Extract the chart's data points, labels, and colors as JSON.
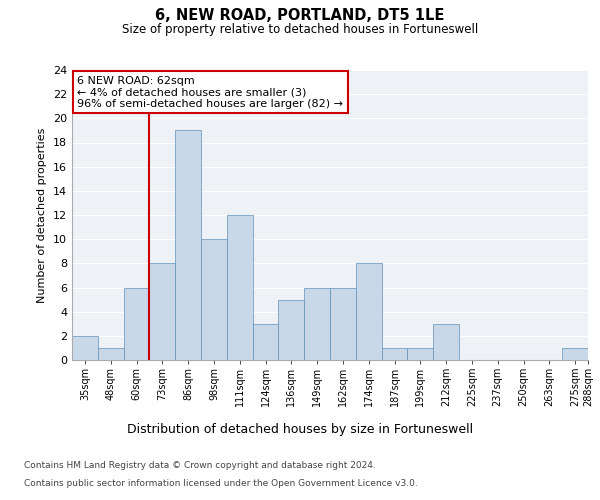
{
  "title": "6, NEW ROAD, PORTLAND, DT5 1LE",
  "subtitle": "Size of property relative to detached houses in Fortuneswell",
  "xlabel": "Distribution of detached houses by size in Fortuneswell",
  "ylabel": "Number of detached properties",
  "footnote1": "Contains HM Land Registry data © Crown copyright and database right 2024.",
  "footnote2": "Contains public sector information licensed under the Open Government Licence v3.0.",
  "annotation_line1": "6 NEW ROAD: 62sqm",
  "annotation_line2": "← 4% of detached houses are smaller (3)",
  "annotation_line3": "96% of semi-detached houses are larger (82) →",
  "bar_values": [
    2,
    1,
    6,
    8,
    19,
    10,
    12,
    3,
    5,
    6,
    6,
    8,
    1,
    1,
    3,
    0,
    0,
    0,
    0,
    1
  ],
  "categories": [
    "35sqm",
    "48sqm",
    "60sqm",
    "73sqm",
    "86sqm",
    "98sqm",
    "111sqm",
    "124sqm",
    "136sqm",
    "149sqm",
    "162sqm",
    "174sqm",
    "187sqm",
    "199sqm",
    "212sqm",
    "225sqm",
    "237sqm",
    "250sqm",
    "263sqm",
    "275sqm",
    "288sqm"
  ],
  "bar_color": "#c8d8e8",
  "bar_edge_color": "#6090b8",
  "vline_color": "#cc0000",
  "annotation_box_color": "#cc0000",
  "background_color": "#eef2f7",
  "ylim": [
    0,
    24
  ],
  "yticks": [
    0,
    2,
    4,
    6,
    8,
    10,
    12,
    14,
    16,
    18,
    20,
    22,
    24
  ]
}
